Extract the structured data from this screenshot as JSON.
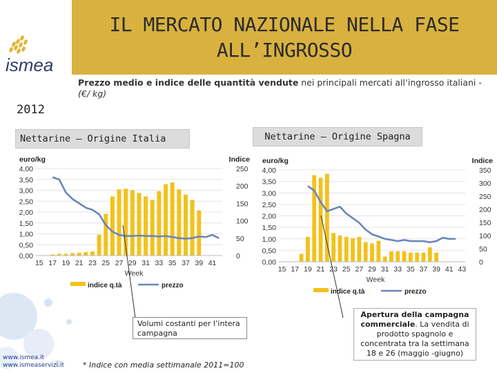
{
  "title": "IL MERCATO NAZIONALE NELLA FASE\nALL’INGROSSO",
  "logo_text": "ismea",
  "subtitle": {
    "bold": "Prezzo medio e indice delle quantità vendute",
    "rest": " nei principali mercati all’ingrosso italiani -",
    "unit": "(€/ kg)"
  },
  "year": "2012",
  "colors": {
    "bar": "#f2c21b",
    "line": "#6a86b9",
    "title_bg": "#d9b13f"
  },
  "chart_data": [
    {
      "type": "bar+line",
      "label": "Nettarine – Origine Italia",
      "xlabel": "Week",
      "ylabel_left": "euro/kg",
      "ylabel_right": "Indice",
      "weeks": [
        15,
        16,
        17,
        18,
        19,
        20,
        21,
        22,
        23,
        24,
        25,
        26,
        27,
        28,
        29,
        30,
        31,
        32,
        33,
        34,
        35,
        36,
        37,
        38,
        39,
        40,
        41,
        42
      ],
      "xticks": [
        15,
        17,
        19,
        21,
        23,
        25,
        27,
        29,
        31,
        33,
        35,
        37,
        39,
        41
      ],
      "yticks_left": [
        "0,00",
        "0,50",
        "1,00",
        "1,50",
        "2,00",
        "2,50",
        "3,00",
        "3,50",
        "4,00"
      ],
      "yticks_right": [
        "0",
        "50",
        "100",
        "150",
        "200",
        "250"
      ],
      "ylim_left": [
        0,
        4
      ],
      "ylim_right": [
        0,
        250
      ],
      "series": [
        {
          "name": "indice q.tà",
          "axis": "right",
          "values": [
            0,
            0,
            3,
            5,
            5,
            7,
            8,
            10,
            12,
            60,
            120,
            170,
            190,
            192,
            188,
            180,
            170,
            160,
            185,
            205,
            210,
            190,
            175,
            160,
            130,
            0,
            0,
            0
          ]
        },
        {
          "name": "prezzo",
          "axis": "left",
          "values": [
            null,
            null,
            3.6,
            3.5,
            2.9,
            2.6,
            2.4,
            2.2,
            2.1,
            1.9,
            1.4,
            1.1,
            0.95,
            0.9,
            0.9,
            0.92,
            0.9,
            0.9,
            0.88,
            0.9,
            0.85,
            0.8,
            0.78,
            0.8,
            0.88,
            0.85,
            0.95,
            0.8
          ]
        }
      ],
      "legend": [
        "indice q.tà",
        "prezzo"
      ]
    },
    {
      "type": "bar+line",
      "label": "Nettarine – Origine Spagna",
      "xlabel": "Week",
      "ylabel_left": "euro/kg",
      "ylabel_right": "Indice",
      "weeks": [
        15,
        16,
        17,
        18,
        19,
        20,
        21,
        22,
        23,
        24,
        25,
        26,
        27,
        28,
        29,
        30,
        31,
        32,
        33,
        34,
        35,
        36,
        37,
        38,
        39,
        40,
        41,
        42,
        43
      ],
      "xticks": [
        15,
        17,
        19,
        21,
        23,
        25,
        27,
        29,
        31,
        33,
        35,
        37,
        39,
        41,
        43
      ],
      "yticks_left": [
        "0,00",
        "0,50",
        "1,00",
        "1,50",
        "2,00",
        "2,50",
        "3,00",
        "3,50",
        "4,00"
      ],
      "yticks_right": [
        "0",
        "50",
        "100",
        "150",
        "200",
        "250",
        "300",
        "350"
      ],
      "ylim_left": [
        0,
        4
      ],
      "ylim_right": [
        0,
        350
      ],
      "series": [
        {
          "name": "indice q.tà",
          "axis": "right",
          "values": [
            0,
            0,
            0,
            30,
            95,
            330,
            320,
            335,
            110,
            100,
            95,
            90,
            95,
            75,
            70,
            80,
            20,
            40,
            40,
            40,
            35,
            35,
            35,
            55,
            35,
            0,
            0,
            0,
            0
          ]
        },
        {
          "name": "prezzo",
          "axis": "left",
          "values": [
            null,
            null,
            null,
            null,
            3.3,
            3.1,
            2.6,
            2.2,
            2.3,
            2.4,
            2.1,
            1.9,
            1.7,
            1.4,
            1.2,
            1.1,
            1.0,
            0.95,
            0.9,
            0.95,
            0.9,
            0.9,
            0.9,
            0.85,
            0.9,
            1.05,
            1.0,
            1.0,
            null
          ]
        }
      ],
      "legend": [
        "indice q.tà",
        "prezzo"
      ]
    }
  ],
  "callout1": "Volumi costanti per l’intera campagna",
  "callout2": {
    "bold": "Apertura della campagna commerciale",
    "rest": ". La vendita di prodotto spagnolo e concentrata tra la settimana 18 e 26 (maggio -giugno)"
  },
  "footnote": "* Indice con media settimanale 2011=100",
  "links": [
    "www.ismea.it",
    "www.ismeaservizi.it"
  ]
}
